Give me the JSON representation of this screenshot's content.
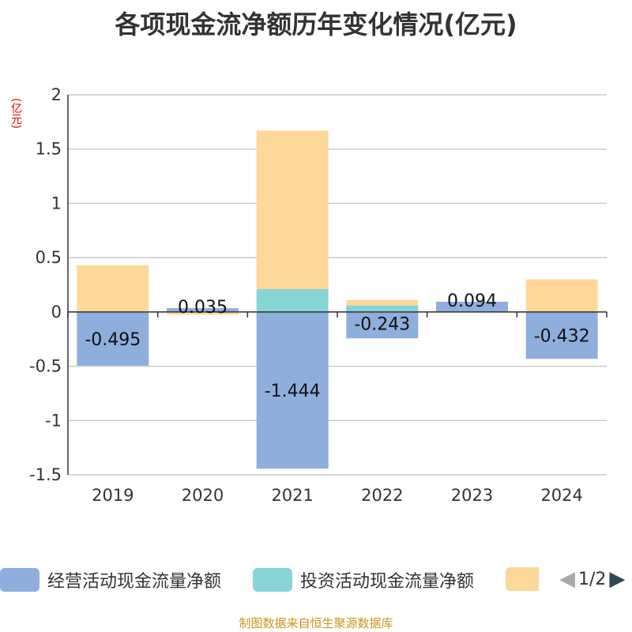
{
  "chart_data": {
    "type": "bar",
    "stacked": true,
    "title": "各项现金流净额历年变化情况(亿元)",
    "ylabel": "(亿元)",
    "categories": [
      "2019",
      "2020",
      "2021",
      "2022",
      "2023",
      "2024"
    ],
    "ylim": [
      -1.5,
      2
    ],
    "yticks": [
      -1.5,
      -1,
      -0.5,
      0,
      0.5,
      1,
      1.5,
      2
    ],
    "ytick_labels": [
      "-1.5",
      "-1",
      "-0.5",
      "0",
      "0.5",
      "1",
      "1.5",
      "2"
    ],
    "grid": true,
    "legend_position": "bottom",
    "series": [
      {
        "name": "经营活动现金流量净额",
        "color": "#8eaedb",
        "values": [
          -0.495,
          0.035,
          -1.444,
          -0.243,
          0.094,
          -0.432
        ],
        "labels": [
          "-0.495",
          "0.035",
          "-1.444",
          "-0.243",
          "0.094",
          "-0.432"
        ]
      },
      {
        "name": "投资活动现金流量净额",
        "color": "#88d5d8",
        "values": [
          0,
          0,
          0.21,
          0.06,
          0,
          0
        ]
      },
      {
        "color": "#fed899",
        "values": [
          0.43,
          -0.025,
          1.46,
          0.05,
          -0.005,
          0.3
        ]
      }
    ]
  },
  "legend_pager": "1/2",
  "source": "制图数据来自恒生聚源数据库"
}
